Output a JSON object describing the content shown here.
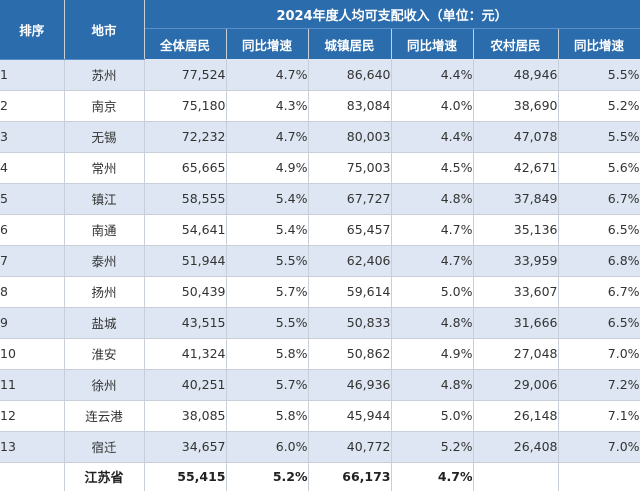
{
  "table": {
    "title": "2024年度人均可支配收入（单位：元）",
    "headers": {
      "rank": "排序",
      "city": "地市",
      "all": "全体居民",
      "all_growth": "同比增速",
      "urban": "城镇居民",
      "urban_growth": "同比增速",
      "rural": "农村居民",
      "rural_growth": "同比增速"
    },
    "rows": [
      {
        "rank": "1",
        "city": "苏州",
        "all": "77,524",
        "all_growth": "4.7%",
        "urban": "86,640",
        "urban_growth": "4.4%",
        "rural": "48,946",
        "rural_growth": "5.5%"
      },
      {
        "rank": "2",
        "city": "南京",
        "all": "75,180",
        "all_growth": "4.3%",
        "urban": "83,084",
        "urban_growth": "4.0%",
        "rural": "38,690",
        "rural_growth": "5.2%"
      },
      {
        "rank": "3",
        "city": "无锡",
        "all": "72,232",
        "all_growth": "4.7%",
        "urban": "80,003",
        "urban_growth": "4.4%",
        "rural": "47,078",
        "rural_growth": "5.5%"
      },
      {
        "rank": "4",
        "city": "常州",
        "all": "65,665",
        "all_growth": "4.9%",
        "urban": "75,003",
        "urban_growth": "4.5%",
        "rural": "42,671",
        "rural_growth": "5.6%"
      },
      {
        "rank": "5",
        "city": "镇江",
        "all": "58,555",
        "all_growth": "5.4%",
        "urban": "67,727",
        "urban_growth": "4.8%",
        "rural": "37,849",
        "rural_growth": "6.7%"
      },
      {
        "rank": "6",
        "city": "南通",
        "all": "54,641",
        "all_growth": "5.4%",
        "urban": "65,457",
        "urban_growth": "4.7%",
        "rural": "35,136",
        "rural_growth": "6.5%"
      },
      {
        "rank": "7",
        "city": "泰州",
        "all": "51,944",
        "all_growth": "5.5%",
        "urban": "62,406",
        "urban_growth": "4.7%",
        "rural": "33,959",
        "rural_growth": "6.8%"
      },
      {
        "rank": "8",
        "city": "扬州",
        "all": "50,439",
        "all_growth": "5.7%",
        "urban": "59,614",
        "urban_growth": "5.0%",
        "rural": "33,607",
        "rural_growth": "6.7%"
      },
      {
        "rank": "9",
        "city": "盐城",
        "all": "43,515",
        "all_growth": "5.5%",
        "urban": "50,833",
        "urban_growth": "4.8%",
        "rural": "31,666",
        "rural_growth": "6.5%"
      },
      {
        "rank": "10",
        "city": "淮安",
        "all": "41,324",
        "all_growth": "5.8%",
        "urban": "50,862",
        "urban_growth": "4.9%",
        "rural": "27,048",
        "rural_growth": "7.0%"
      },
      {
        "rank": "11",
        "city": "徐州",
        "all": "40,251",
        "all_growth": "5.7%",
        "urban": "46,936",
        "urban_growth": "4.8%",
        "rural": "29,006",
        "rural_growth": "7.2%"
      },
      {
        "rank": "12",
        "city": "连云港",
        "all": "38,085",
        "all_growth": "5.8%",
        "urban": "45,944",
        "urban_growth": "5.0%",
        "rural": "26,148",
        "rural_growth": "7.1%"
      },
      {
        "rank": "13",
        "city": "宿迁",
        "all": "34,657",
        "all_growth": "6.0%",
        "urban": "40,772",
        "urban_growth": "5.2%",
        "rural": "26,408",
        "rural_growth": "7.0%"
      }
    ],
    "total": {
      "rank": "",
      "city": "江苏省",
      "all": "55,415",
      "all_growth": "5.2%",
      "urban": "66,173",
      "urban_growth": "4.7%",
      "rural": "",
      "rural_growth": ""
    }
  }
}
